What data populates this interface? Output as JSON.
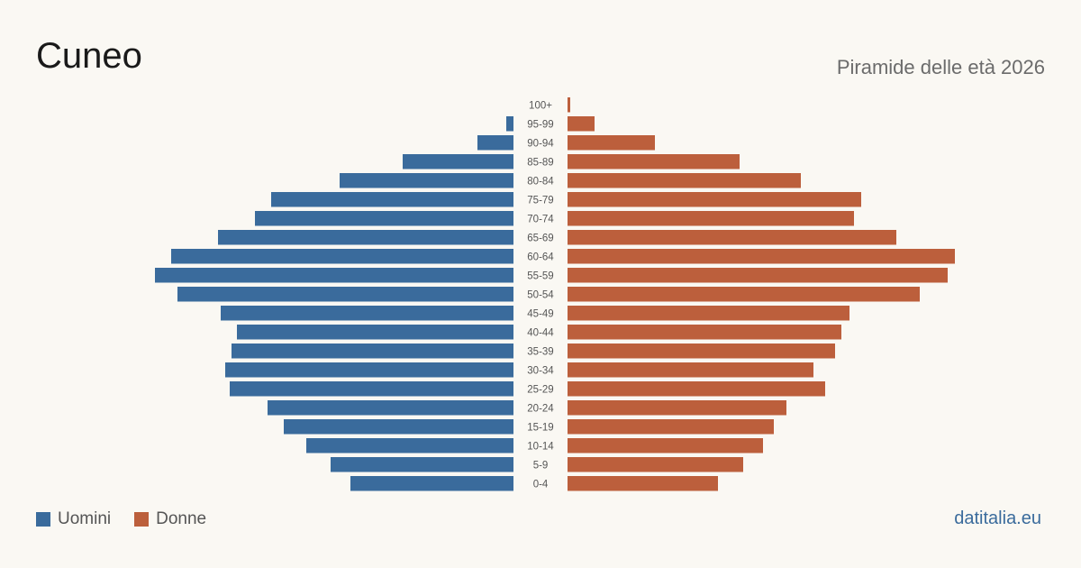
{
  "header": {
    "title": "Cuneo",
    "subtitle": "Piramide delle età 2026"
  },
  "legend": {
    "men_label": "Uomini",
    "women_label": "Donne"
  },
  "brand": {
    "label": "datitalia.eu"
  },
  "colors": {
    "men": "#3a6b9c",
    "women": "#bc5f3c",
    "brand": "#3a6b9c"
  },
  "chart_data": {
    "type": "bar",
    "orientation": "horizontal-population-pyramid",
    "categories": [
      "100+",
      "95-99",
      "90-94",
      "85-89",
      "80-84",
      "75-79",
      "70-74",
      "65-69",
      "60-64",
      "55-59",
      "50-54",
      "45-49",
      "40-44",
      "35-39",
      "30-34",
      "25-29",
      "20-24",
      "15-19",
      "10-14",
      "5-9",
      "0-4"
    ],
    "series": [
      {
        "name": "Uomini",
        "side": "left",
        "values": [
          0,
          8,
          40,
          123,
          193,
          269,
          287,
          328,
          380,
          398,
          373,
          325,
          307,
          313,
          320,
          315,
          273,
          255,
          230,
          203,
          181
        ]
      },
      {
        "name": "Donne",
        "side": "right",
        "values": [
          3,
          30,
          97,
          191,
          259,
          326,
          318,
          365,
          430,
          422,
          391,
          313,
          304,
          297,
          273,
          286,
          243,
          229,
          217,
          195,
          167
        ]
      }
    ],
    "legend_position": "bottom-left",
    "grid": false
  }
}
